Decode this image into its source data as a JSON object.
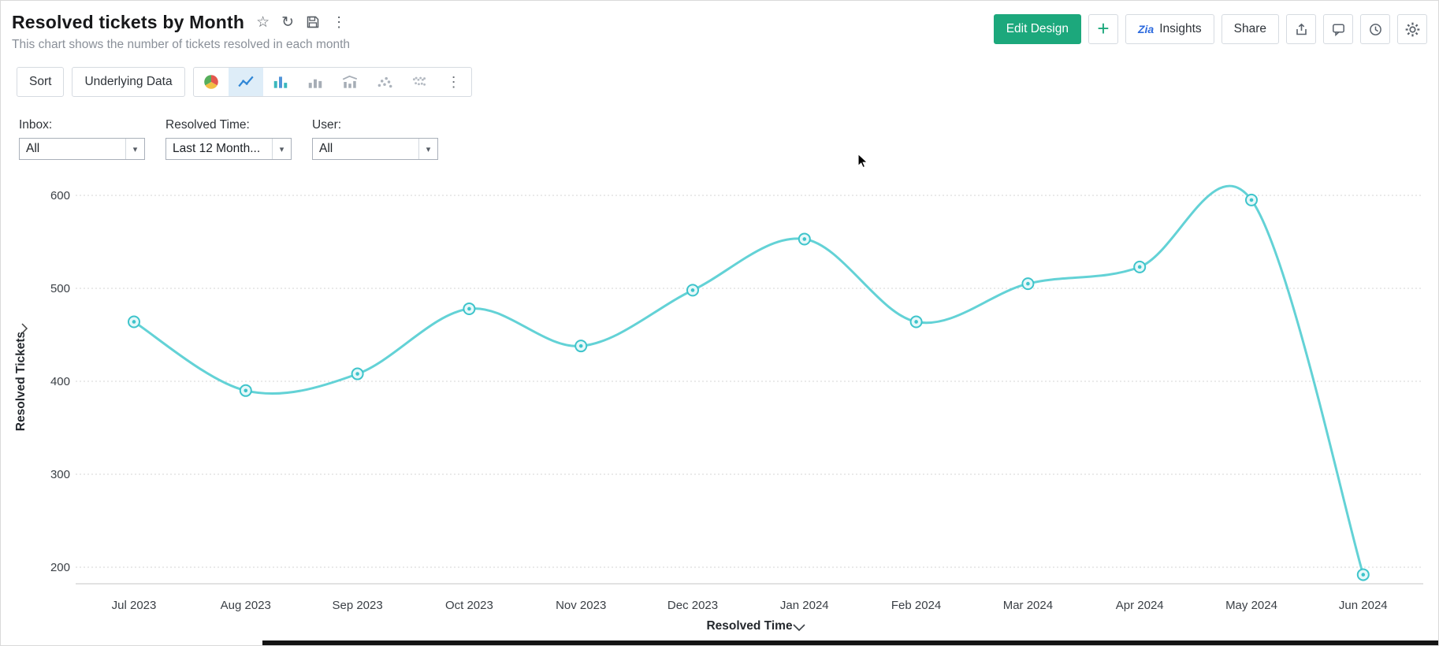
{
  "header": {
    "title": "Resolved tickets by Month",
    "subtitle": "This chart shows the number of tickets resolved in each month"
  },
  "actions": {
    "edit_design": "Edit Design",
    "insights": "Insights",
    "share": "Share"
  },
  "toolbar": {
    "sort": "Sort",
    "underlying_data": "Underlying Data",
    "chart_types": [
      "pie",
      "line",
      "bar",
      "stacked-bar",
      "combo",
      "scatter",
      "map"
    ],
    "selected_chart_type": "line"
  },
  "filters": [
    {
      "label": "Inbox:",
      "value": "All"
    },
    {
      "label": "Resolved Time:",
      "value": "Last 12 Month..."
    },
    {
      "label": "User:",
      "value": "All"
    }
  ],
  "icons": {
    "star": "☆",
    "refresh": "↻",
    "more_vertical": "⋮",
    "plus": "+",
    "zia": "Zia",
    "caret_down": "▾"
  },
  "colors": {
    "accent_green": "#1CA87C",
    "line": "#63D2D6",
    "marker_stroke": "#3EC4CB",
    "marker_fill": "#E6F8F9",
    "grid": "#D6D6D6",
    "axis": "#C6C6C6",
    "tick_text": "#3A3F45",
    "selected_icon_blue": "#2F86D6",
    "zia_blue": "#2E6BDE"
  },
  "chart_data": {
    "type": "line",
    "x": [
      "Jul 2023",
      "Aug 2023",
      "Sep 2023",
      "Oct 2023",
      "Nov 2023",
      "Dec 2023",
      "Jan 2024",
      "Feb 2024",
      "Mar 2024",
      "Apr 2024",
      "May 2024",
      "Jun 2024"
    ],
    "series": [
      {
        "name": "Resolved Tickets",
        "values": [
          464,
          390,
          408,
          478,
          438,
          498,
          553,
          464,
          505,
          523,
          595,
          192
        ]
      }
    ],
    "title": "Resolved tickets by Month",
    "xlabel": "Resolved Time",
    "ylabel": "Resolved Tickets",
    "yticks": [
      200,
      300,
      400,
      500,
      600
    ],
    "ylim": [
      180,
      620
    ],
    "grid": "dotted-horizontal",
    "legend": "none",
    "marker": "ring"
  }
}
